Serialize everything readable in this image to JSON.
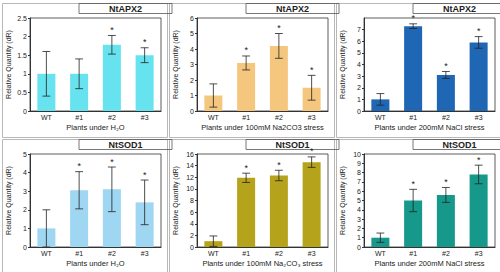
{
  "chart_data": [
    {
      "type": "bar",
      "title": "NtAPX2",
      "x_label": "Plants under H₂O",
      "y_label": "Relative Quantity (dR)",
      "categories": [
        "WT",
        "#1",
        "#2",
        "#3"
      ],
      "values": [
        1.0,
        1.0,
        1.78,
        1.5
      ],
      "errors": [
        0.6,
        0.4,
        0.25,
        0.2
      ],
      "annotations": [
        {
          "category": "#2",
          "text": "*"
        },
        {
          "category": "#3",
          "text": "*"
        }
      ],
      "color": "#66e3ef",
      "ylim": [
        0,
        2.5
      ],
      "yticks": [
        0,
        0.5,
        1,
        1.5,
        2,
        2.5
      ],
      "grid": false
    },
    {
      "type": "bar",
      "title": "NtAPX2",
      "x_label": "Plants under 100mM Na2CO3 stress",
      "y_label": "Relative Quantity (dR)",
      "categories": [
        "WT",
        "#1",
        "#2",
        "#3"
      ],
      "values": [
        1.0,
        3.1,
        4.2,
        1.5
      ],
      "errors": [
        0.75,
        0.45,
        0.8,
        0.8
      ],
      "annotations": [
        {
          "category": "#1",
          "text": "*"
        },
        {
          "category": "#2",
          "text": "*"
        },
        {
          "category": "#3",
          "text": "*"
        }
      ],
      "color": "#f5c77e",
      "ylim": [
        0,
        6
      ],
      "yticks": [
        0,
        1,
        2,
        3,
        4,
        5,
        6
      ],
      "grid": false
    },
    {
      "type": "bar",
      "title": "NtAPX2",
      "x_label": "Plants under 200mM NaCl stress",
      "y_label": "Relative Quantity (dR)",
      "categories": [
        "WT",
        "#1",
        "#2",
        "#3"
      ],
      "values": [
        1.0,
        7.3,
        3.1,
        5.9
      ],
      "errors": [
        0.5,
        0.2,
        0.3,
        0.5
      ],
      "annotations": [
        {
          "category": "#1",
          "text": "*"
        },
        {
          "category": "#2",
          "text": "*"
        },
        {
          "category": "#3",
          "text": "*"
        }
      ],
      "color": "#1f66b5",
      "ylim": [
        0,
        8
      ],
      "yticks": [
        0,
        1,
        2,
        3,
        4,
        5,
        6,
        7
      ],
      "grid": false
    },
    {
      "type": "bar",
      "title": "NtSOD1",
      "x_label": "Plants under H₂O",
      "y_label": "Relative Quantity (dR)",
      "categories": [
        "WT",
        "#1",
        "#2",
        "#3"
      ],
      "values": [
        1.0,
        3.05,
        3.1,
        2.4
      ],
      "errors": [
        1.0,
        1.0,
        1.2,
        1.2
      ],
      "annotations": [
        {
          "category": "#1",
          "text": "*"
        },
        {
          "category": "#2",
          "text": "*"
        },
        {
          "category": "#3",
          "text": "*"
        }
      ],
      "color": "#9fd6f2",
      "ylim": [
        0,
        5
      ],
      "yticks": [
        0,
        1,
        2,
        3,
        4,
        5
      ],
      "grid": false
    },
    {
      "type": "bar",
      "title": "NtSOD1",
      "x_label": "Plants under 100mM Na₂CO₃ stress",
      "y_label": "Relative Quantity (dR)",
      "categories": [
        "WT",
        "#1",
        "#2",
        "#3"
      ],
      "values": [
        1.0,
        11.9,
        12.3,
        14.6
      ],
      "errors": [
        0.9,
        0.8,
        0.9,
        0.9
      ],
      "annotations": [
        {
          "category": "#1",
          "text": "*"
        },
        {
          "category": "#2",
          "text": "*"
        },
        {
          "category": "#3",
          "text": "*"
        }
      ],
      "color": "#b5a31c",
      "ylim": [
        0,
        16
      ],
      "yticks": [
        0,
        2,
        4,
        6,
        8,
        10,
        12,
        14,
        16
      ],
      "grid": false
    },
    {
      "type": "bar",
      "title": "NtSOD1",
      "x_label": "Plants under 200mM NaCl stress",
      "y_label": "Relative Quantity (dR)",
      "categories": [
        "WT",
        "#1",
        "#2",
        "#3"
      ],
      "values": [
        1.0,
        5.0,
        5.6,
        7.8
      ],
      "errors": [
        0.5,
        1.2,
        0.8,
        1.0
      ],
      "annotations": [
        {
          "category": "#1",
          "text": "*"
        },
        {
          "category": "#2",
          "text": "*"
        },
        {
          "category": "#3",
          "text": "*"
        }
      ],
      "color": "#16988a",
      "ylim": [
        0,
        10
      ],
      "yticks": [
        0,
        1,
        2,
        3,
        4,
        5,
        6,
        7,
        8,
        9,
        10
      ],
      "grid": false
    }
  ]
}
